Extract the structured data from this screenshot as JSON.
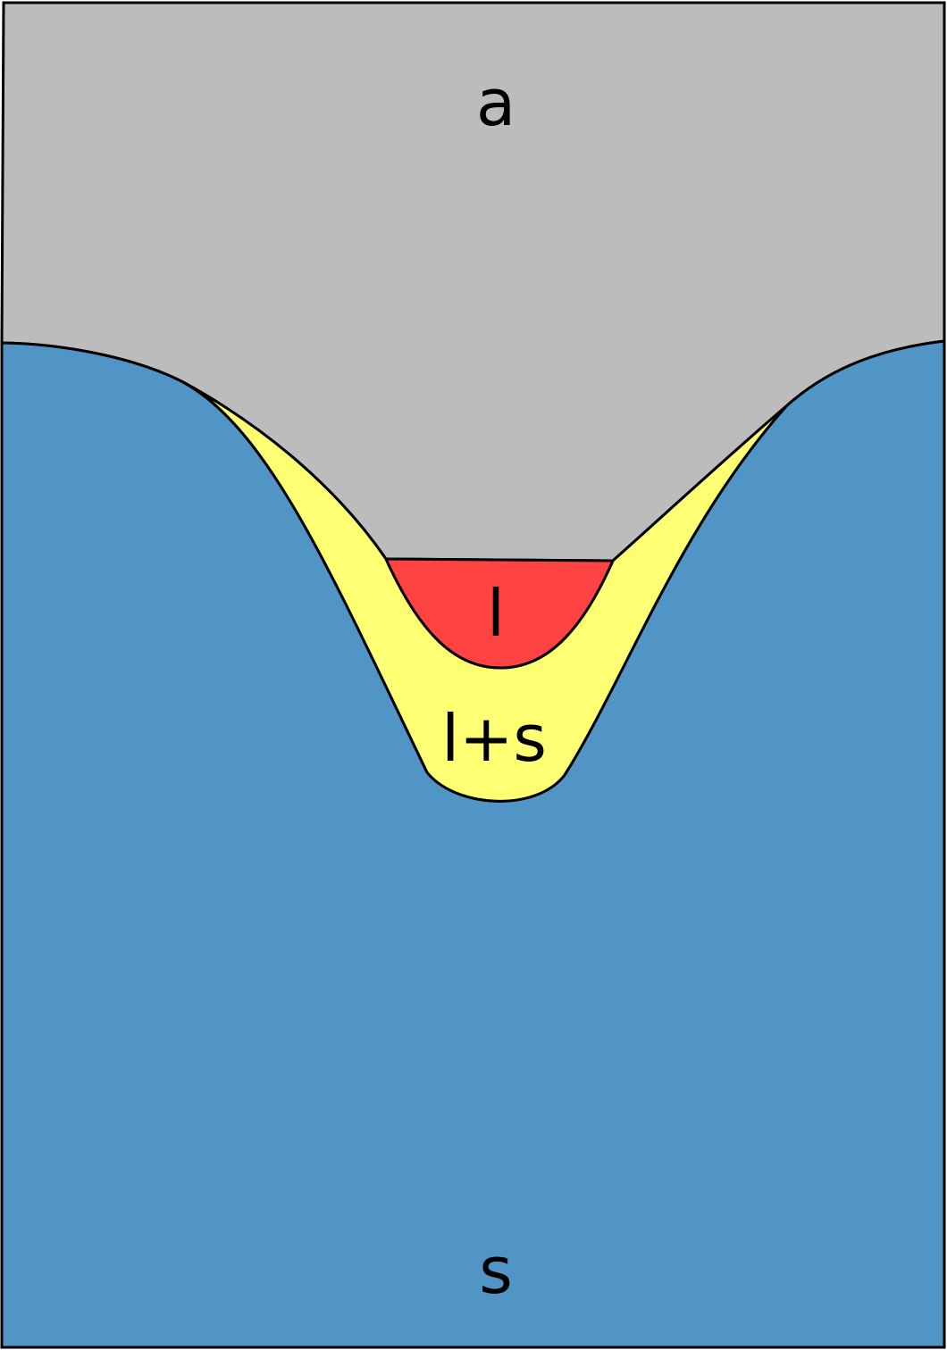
{
  "regions": {
    "air": {
      "label": "a",
      "color": "#bcbcbc"
    },
    "liquid": {
      "label": "l",
      "color": "#ff4242"
    },
    "mushy": {
      "label": "l+s",
      "color": "#ffff73"
    },
    "solid": {
      "label": "s",
      "color": "#5095c5"
    }
  },
  "outline_color": "#000000"
}
